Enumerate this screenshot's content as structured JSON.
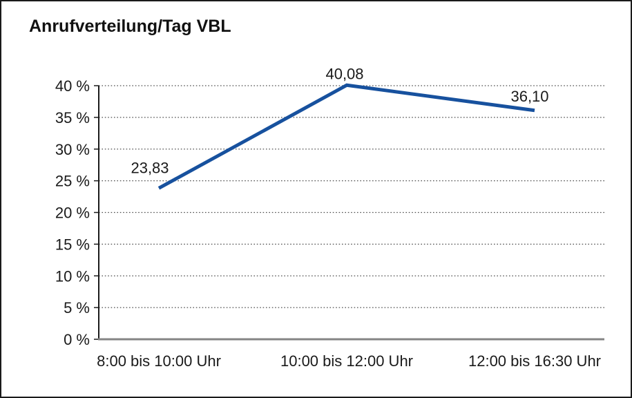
{
  "chart_data": {
    "type": "line",
    "title": "Anrufverteilung/Tag VBL",
    "xlabel": "",
    "ylabel": "",
    "unit": "%",
    "categories": [
      "8:00 bis 10:00 Uhr",
      "10:00 bis 12:00 Uhr",
      "12:00 bis 16:30 Uhr"
    ],
    "series": [
      {
        "name": "Anrufverteilung/Tag VBL",
        "values": [
          23.83,
          40.08,
          36.1
        ]
      }
    ],
    "data_labels": [
      "23,83",
      "40,08",
      "36,10"
    ],
    "y_tick_labels": [
      "0 %",
      "5 %",
      "10 %",
      "15 %",
      "20 %",
      "25 %",
      "30 %",
      "35 %",
      "40 %"
    ],
    "ylim": [
      0,
      40
    ],
    "y_step": 5,
    "grid": "horizontal-dotted",
    "legend": "none",
    "markers": "none",
    "line_color": "#17519E",
    "grid_color": "#4d4d4d",
    "axis_color": "#1a1a1a",
    "baseline_color": "#848484",
    "background": "#FFFFFF",
    "border_color": "#1a1a1a"
  }
}
